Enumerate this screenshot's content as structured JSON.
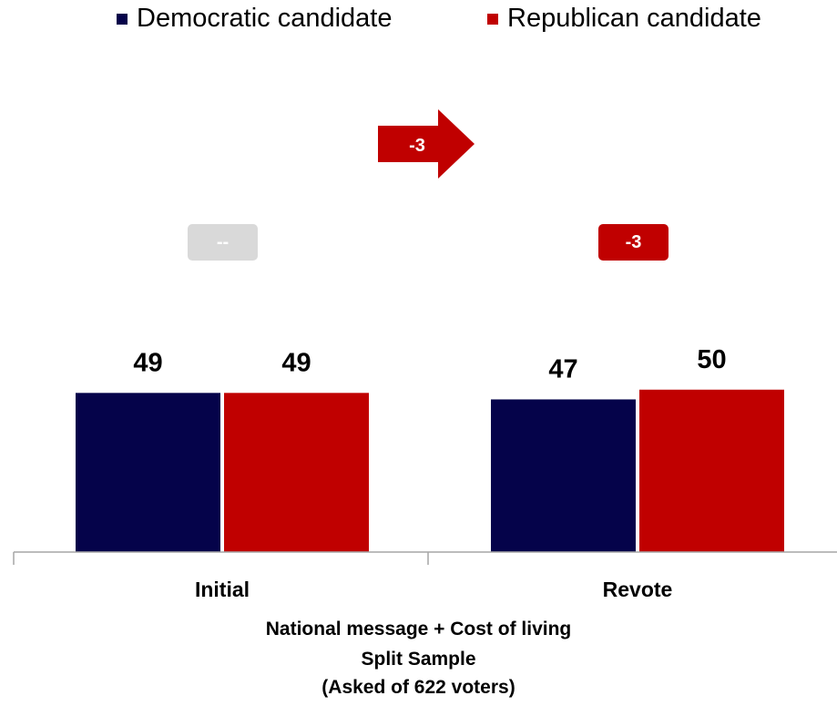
{
  "colors": {
    "democratic": "#05034a",
    "republican": "#c00000",
    "neutral": "#d9d9d9",
    "axis": "#a6a6a6"
  },
  "legend": {
    "democratic": "Democratic candidate",
    "republican": "Republican candidate"
  },
  "chart_data": {
    "type": "bar",
    "categories": [
      "Initial",
      "Revote"
    ],
    "series": [
      {
        "name": "Democratic candidate",
        "values": [
          49,
          47
        ]
      },
      {
        "name": "Republican candidate",
        "values": [
          49,
          50
        ]
      }
    ],
    "ylim": [
      0,
      100
    ],
    "grid": false,
    "legend_position": "top",
    "margin_labels": [
      "--",
      "-3"
    ],
    "shift_arrow_label": "-3"
  },
  "caption": {
    "line1": "National message + Cost of living",
    "line2": "Split Sample",
    "line3": "(Asked of 622 voters)"
  }
}
